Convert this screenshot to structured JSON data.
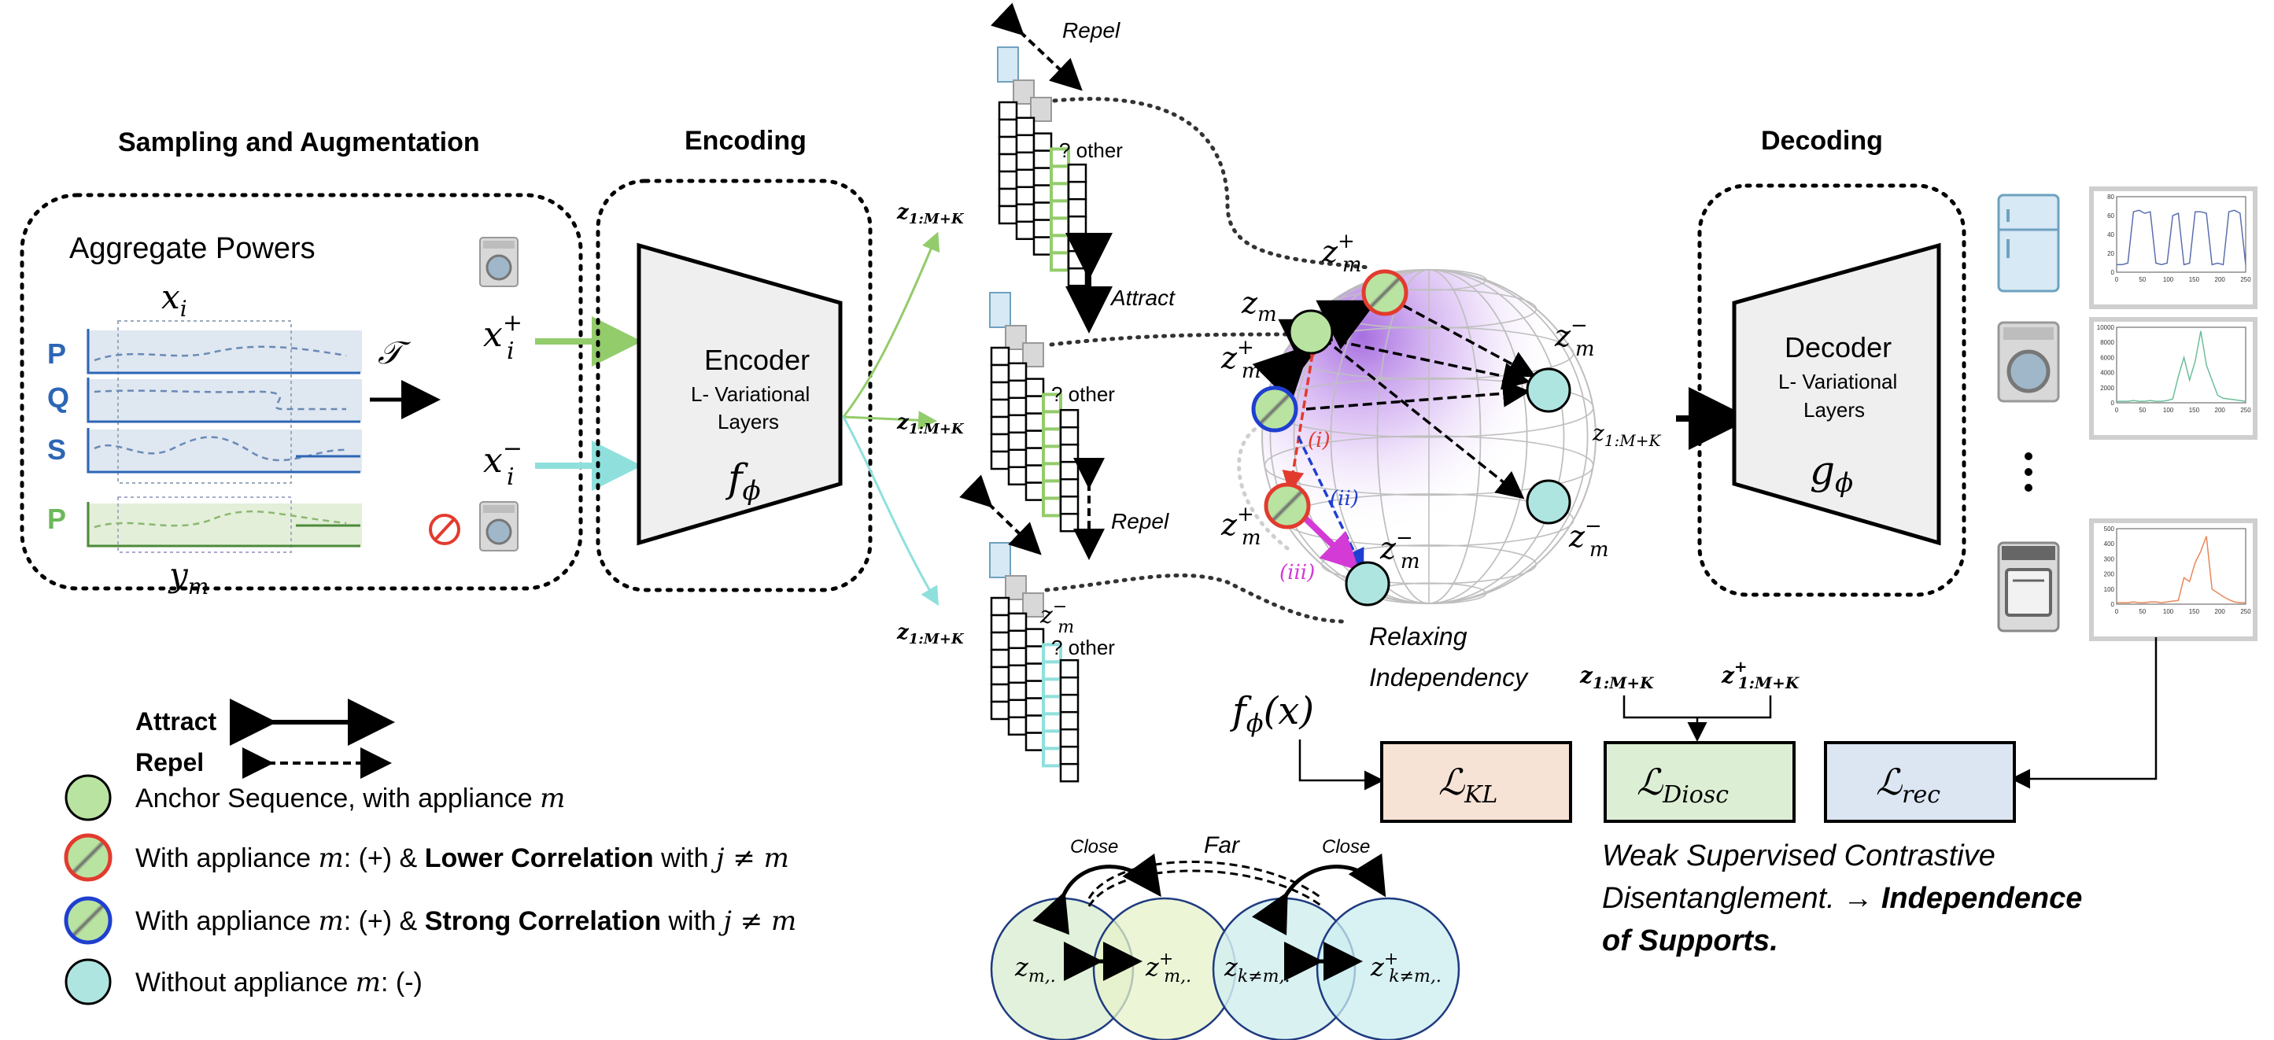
{
  "sections": {
    "sampling": "Sampling and Augmentation",
    "encoding": "Encoding",
    "decoding": "Decoding"
  },
  "aggregate_box": {
    "title": "Aggregate Powers",
    "x_i": "x",
    "x_i_sub": "i",
    "channels": [
      "P",
      "Q",
      "S"
    ],
    "target_channel": "P",
    "y_m": "y",
    "y_m_sub": "m",
    "transform": "𝒯"
  },
  "inputs": {
    "x_pos": "x",
    "x_pos_sub": "i",
    "x_pos_sup": "+",
    "x_neg": "x",
    "x_neg_sub": "i",
    "x_neg_sup": "−"
  },
  "encoder": {
    "title": "Encoder",
    "line1": "L- Variational",
    "line2": "Layers",
    "func": "f",
    "func_sub": "ϕ"
  },
  "decoder": {
    "title": "Decoder",
    "line1": "L- Variational",
    "line2": "Layers",
    "func": "g",
    "func_sub": "ϕ"
  },
  "latent": {
    "z_label": "z",
    "z_sub": "1:M+K",
    "other": "? other",
    "repel": "Repel",
    "attract": "Attract",
    "zm_neg_small": "z",
    "zm_neg_small_sub": "m",
    "zm_neg_small_sup": "−"
  },
  "sphere": {
    "zm": "z",
    "zm_sub": "m",
    "zm_plus_sup": "+",
    "zm_minus_sup": "−",
    "i": "(i)",
    "ii": "(ii)",
    "iii": "(iii)",
    "relax1": "Relaxing",
    "relax2": "Independency",
    "z_out": "z",
    "z_out_sub": "1:M+K"
  },
  "losses": {
    "f_phi_x": "f",
    "f_phi_x_sub": "ϕ",
    "f_phi_x_arg": "(x)",
    "z_a": "z",
    "z_a_sub": "1:M+K",
    "z_b": "z",
    "z_b_sub": "1:M+K",
    "z_b_sup": "+",
    "kl": "ℒ",
    "kl_sub": "KL",
    "diosc": "ℒ",
    "diosc_sub": "Diosc",
    "rec": "ℒ",
    "rec_sub": "rec",
    "caption1": "Weak Supervised Contrastive",
    "caption2": "Disentanglement. →",
    "caption2b": "Independence",
    "caption3": "of Supports."
  },
  "legend": {
    "attract": "Attract",
    "repel": "Repel",
    "anchor": "Anchor Sequence, with appliance ",
    "anchor_m": "m",
    "lower_pre": "With appliance ",
    "lower_m": "m",
    "lower_mid": ": (+)  & ",
    "lower_bold": "Lower Correlation",
    "lower_post": " with ",
    "lower_j": "j ≠ m",
    "strong_pre": "With appliance ",
    "strong_m": "m",
    "strong_mid": ": (+)  & ",
    "strong_bold": "Strong Correlation",
    "strong_post": " with ",
    "strong_j": "j ≠ m",
    "without_pre": "Without appliance ",
    "without_m": "m",
    "without_post": ": (-)"
  },
  "venn": {
    "far": "Far",
    "close1": "Close",
    "close2": "Close",
    "c1": "z",
    "c1_sub": "m,.",
    "c2": "z",
    "c2_sub": "m,.",
    "c2_sup": "+",
    "c3": "z",
    "c3_sub": "k≠m,.",
    "c4": "z",
    "c4_sub": "k≠m,.",
    "c4_sup": "+"
  },
  "plots": [
    {
      "yticks": [
        "0",
        "20",
        "40",
        "60",
        "80"
      ],
      "xticks": [
        "0",
        "50",
        "100",
        "150",
        "200",
        "250"
      ],
      "color": "#5b6fb0"
    },
    {
      "yticks": [
        "0",
        "2000",
        "4000",
        "6000",
        "8000",
        "10000"
      ],
      "xticks": [
        "0",
        "50",
        "100",
        "150",
        "200",
        "250"
      ],
      "color": "#6bbf9a"
    },
    {
      "yticks": [
        "0",
        "100",
        "200",
        "300",
        "400",
        "500"
      ],
      "xticks": [
        "0",
        "50",
        "100",
        "150",
        "200",
        "250"
      ],
      "color": "#e8875a"
    }
  ],
  "colors": {
    "anchor": "#b9e3a1",
    "negative": "#aee5e0",
    "red": "#e23b2e",
    "blue": "#1f3fd0",
    "magenta": "#d33ad6",
    "green_arrow": "#93cc6b",
    "cyan_arrow": "#8fe0dc",
    "kl_fill": "#f7e3d5",
    "diosc_fill": "#dcefd5",
    "rec_fill": "#dce6f2"
  }
}
